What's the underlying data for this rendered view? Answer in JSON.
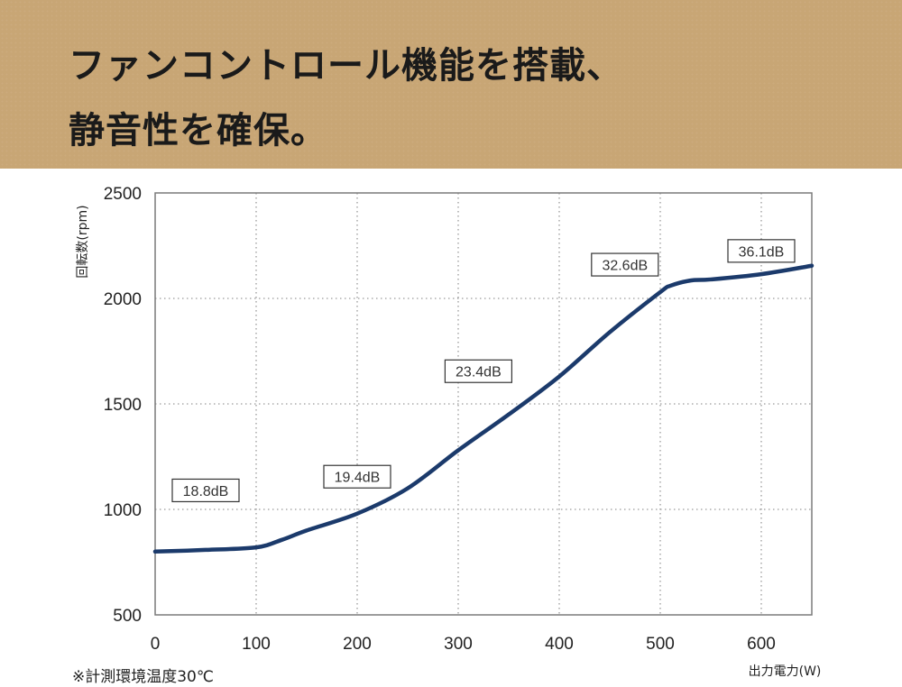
{
  "header": {
    "line1": "ファンコントロール機能を搭載、",
    "line2": "静音性を確保。"
  },
  "colors": {
    "banner_bg": "#c8a675",
    "line": "#1b3a6b",
    "grid": "#9a9a9a"
  },
  "chart_data": {
    "type": "line",
    "xlabel": "出力電力(W)",
    "ylabel": "回転数(rpm)",
    "xlim": [
      0,
      650
    ],
    "ylim": [
      500,
      2500
    ],
    "xticks": [
      0,
      100,
      200,
      300,
      400,
      500,
      600
    ],
    "yticks": [
      500,
      1000,
      1500,
      2000,
      2500
    ],
    "grid": true,
    "series": [
      {
        "x": [
          0,
          50,
          100,
          125,
          150,
          200,
          250,
          300,
          350,
          400,
          450,
          500,
          510,
          530,
          550,
          600,
          650
        ],
        "y": [
          800,
          808,
          820,
          855,
          900,
          980,
          1100,
          1280,
          1450,
          1630,
          1840,
          2030,
          2060,
          2085,
          2090,
          2115,
          2155
        ]
      }
    ],
    "annotations": [
      {
        "text": "18.8dB",
        "x": 50,
        "y": 1090
      },
      {
        "text": "19.4dB",
        "x": 200,
        "y": 1155
      },
      {
        "text": "23.4dB",
        "x": 320,
        "y": 1655
      },
      {
        "text": "32.6dB",
        "x": 465,
        "y": 2160
      },
      {
        "text": "36.1dB",
        "x": 600,
        "y": 2225
      }
    ]
  },
  "footnote": "※計測環境温度30℃"
}
